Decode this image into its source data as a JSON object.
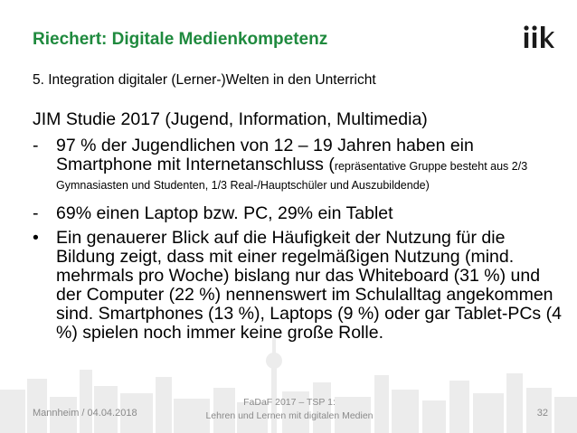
{
  "header": {
    "title": "Riechert: Digitale Medienkompetenz",
    "logo": "iik"
  },
  "subtitle": "5. Integration digitaler (Lerner-)Welten in den Unterricht",
  "heading": "JIM Studie 2017 (Jugend, Information, Multimedia)",
  "items": [
    {
      "marker": "-",
      "text": "97 % der Jugendlichen von 12 – 19 Jahren haben ein Smartphone mit Internetanschluss (",
      "note": "repräsentative Gruppe besteht aus 2/3 Gymnasiasten und Studenten, 1/3 Real-/Hauptschüler und Auszubildende)"
    },
    {
      "marker": "-",
      "text": "69% einen Laptop bzw. PC, 29% ein Tablet"
    },
    {
      "marker": "•",
      "text": "Ein genauerer Blick auf die Häufigkeit der Nutzung für die Bildung zeigt, dass mit einer regelmäßigen Nutzung (mind. mehrmals pro Woche) bislang nur das Whiteboard (31 %) und der Computer (22 %) nennenswert im Schulalltag angekommen sind. Smartphones (13 %), Laptops (9 %) oder gar Tablet-PCs (4 %) spielen noch immer keine große Rolle."
    }
  ],
  "footer": {
    "left": "Mannheim / 04.04.2018",
    "center_line1": "FaDaF 2017 – TSP 1:",
    "center_line2": "Lehren und Lernen mit digitalen Medien",
    "page": "32"
  },
  "colors": {
    "title": "#1f8a3e",
    "skyline": "#ececec",
    "footer_text": "#8a8a8a",
    "logo": "#1a1a1a"
  }
}
